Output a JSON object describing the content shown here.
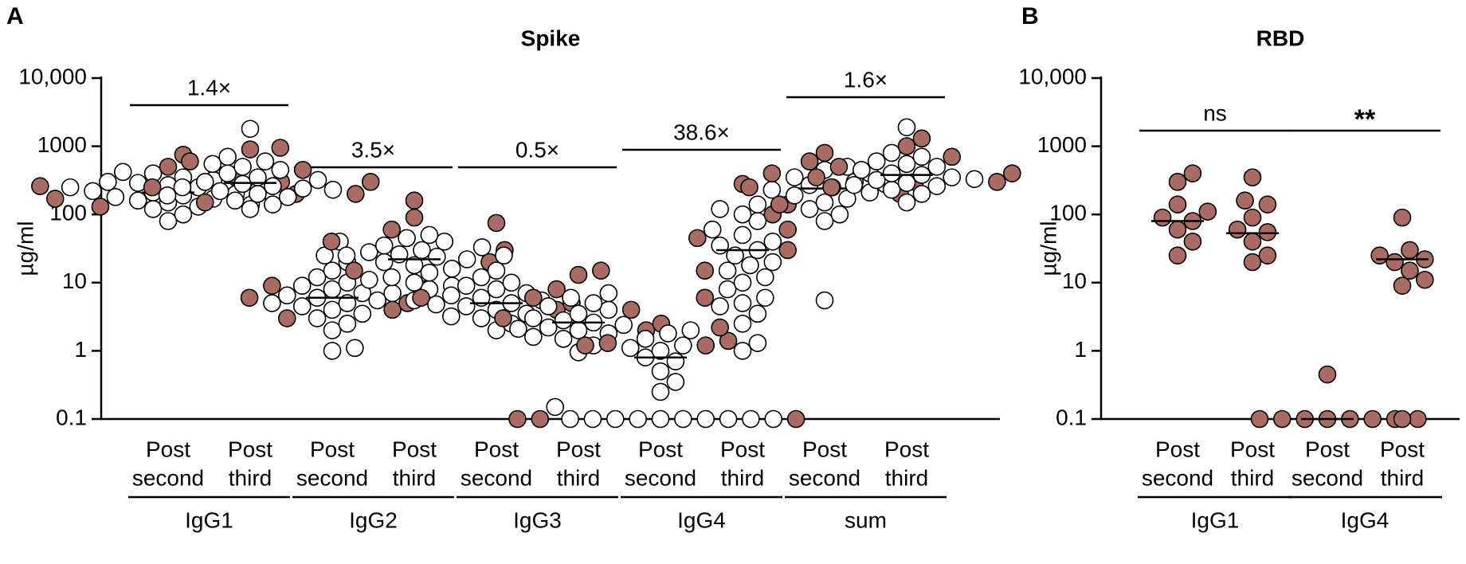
{
  "chart_data": [
    {
      "type": "dotplot",
      "panel": "A",
      "title": "Spike",
      "y_label": "µg/ml",
      "log_y": true,
      "ylim": [
        0.1,
        10000
      ],
      "yticks": [
        0.1,
        1,
        10,
        100,
        1000,
        {
          "value": 10000,
          "label": "10,000"
        }
      ],
      "open_color": "#ffffff",
      "filled_color": "#a86c64",
      "categories": [
        [
          "Post",
          "second"
        ],
        [
          "Post",
          "third"
        ],
        [
          "Post",
          "second"
        ],
        [
          "Post",
          "third"
        ],
        [
          "Post",
          "second"
        ],
        [
          "Post",
          "third"
        ],
        [
          "Post",
          "second"
        ],
        [
          "Post",
          "third"
        ],
        [
          "Post",
          "second"
        ],
        [
          "Post",
          "third"
        ]
      ],
      "groups": [
        "IgG1",
        "IgG2",
        "IgG3",
        "IgG4",
        "sum"
      ],
      "comparisons": [
        "1.4×",
        "3.5×",
        "0.5×",
        "38.6×",
        "1.6×"
      ],
      "medians": [
        210,
        290,
        6,
        22,
        5,
        2.6,
        0.8,
        30,
        240,
        380
      ],
      "open": [
        [
          80,
          100,
          120,
          130,
          150,
          160,
          170,
          180,
          190,
          200,
          210,
          220,
          230,
          250,
          270,
          290,
          320,
          350,
          400,
          420,
          250,
          180,
          140,
          300
        ],
        [
          120,
          140,
          160,
          180,
          200,
          220,
          240,
          260,
          280,
          300,
          320,
          350,
          400,
          450,
          500,
          550,
          600,
          700,
          1800,
          250,
          230,
          190
        ],
        [
          1.0,
          1.1,
          2,
          2.5,
          3,
          3.5,
          4,
          4.5,
          5,
          5.5,
          6,
          6.5,
          7,
          8,
          9,
          10,
          12,
          15,
          20,
          25,
          40,
          5,
          7
        ],
        [
          5.5,
          8,
          10,
          12,
          14,
          16,
          18,
          20,
          22,
          24,
          26,
          28,
          30,
          35,
          40,
          45,
          50,
          9,
          11,
          25,
          33
        ],
        [
          2,
          2.5,
          3,
          3.5,
          4,
          4.5,
          5,
          5.5,
          6,
          7,
          8,
          9,
          10,
          12,
          15,
          25,
          3.2,
          4.8,
          6.5
        ],
        [
          0.95,
          1.2,
          1.5,
          1.8,
          2,
          2.2,
          2.4,
          2.6,
          2.8,
          3,
          3.5,
          4,
          4.5,
          5,
          6,
          7,
          1.6,
          2.1
        ],
        [
          0.1,
          0.1,
          0.1,
          0.1,
          0.1,
          0.1,
          0.1,
          0.1,
          0.1,
          0.1,
          0.15,
          0.25,
          0.35,
          0.5,
          0.7,
          0.8,
          1,
          1.2,
          1.5,
          1.8,
          2,
          1.1
        ],
        [
          1,
          1.3,
          2.5,
          3.5,
          5,
          6,
          8,
          10,
          12,
          15,
          18,
          20,
          25,
          30,
          35,
          40,
          50,
          60,
          80,
          100,
          120,
          140,
          4.5
        ],
        [
          5.5,
          80,
          100,
          120,
          150,
          170,
          190,
          210,
          230,
          250,
          270,
          300,
          350,
          400,
          450,
          500,
          280
        ],
        [
          150,
          200,
          230,
          260,
          290,
          320,
          350,
          380,
          400,
          450,
          500,
          550,
          600,
          700,
          800,
          1900,
          270,
          330
        ]
      ],
      "filled": [
        [
          130,
          170,
          200,
          260,
          300,
          350,
          500,
          750
        ],
        [
          150,
          200,
          250,
          300,
          450,
          600,
          900,
          950
        ],
        [
          3,
          4,
          5,
          6,
          8,
          9
        ],
        [
          15,
          20,
          30,
          40,
          60,
          90,
          160
        ],
        [
          4,
          5,
          6,
          8,
          75
        ],
        [
          2,
          2.5,
          3,
          4,
          6,
          13,
          15
        ],
        [
          0.1,
          0.1,
          0.1,
          1.2,
          1.3,
          1.4,
          1.2
        ],
        [
          2.2,
          6,
          15,
          30,
          45,
          60,
          100,
          140,
          280
        ],
        [
          140,
          200,
          250,
          300,
          400,
          600,
          800
        ],
        [
          250,
          300,
          350,
          400,
          500,
          700,
          1000,
          1300
        ]
      ]
    },
    {
      "type": "dotplot",
      "panel": "B",
      "title": "RBD",
      "y_label": "µg/ml",
      "log_y": true,
      "ylim": [
        0.1,
        10000
      ],
      "yticks": [
        0.1,
        1,
        10,
        100,
        1000,
        {
          "value": 10000,
          "label": "10,000"
        }
      ],
      "open_color": "#ffffff",
      "filled_color": "#a86c64",
      "categories": [
        [
          "Post",
          "second"
        ],
        [
          "Post",
          "third"
        ],
        [
          "Post",
          "second"
        ],
        [
          "Post",
          "third"
        ]
      ],
      "groups": [
        "IgG1",
        "IgG4"
      ],
      "comparisons": [
        "ns",
        "**"
      ],
      "medians": [
        80,
        53,
        0.1,
        22
      ],
      "open": [
        [],
        [],
        [],
        []
      ],
      "filled": [
        [
          25,
          40,
          60,
          80,
          90,
          110,
          140,
          300,
          400
        ],
        [
          20,
          25,
          40,
          55,
          60,
          90,
          140,
          160,
          350
        ],
        [
          0.1,
          0.1,
          0.1,
          0.1,
          0.1,
          0.1,
          0.1,
          0.1,
          0.45
        ],
        [
          0.1,
          9,
          11,
          15,
          20,
          22,
          25,
          30,
          90
        ]
      ]
    }
  ]
}
